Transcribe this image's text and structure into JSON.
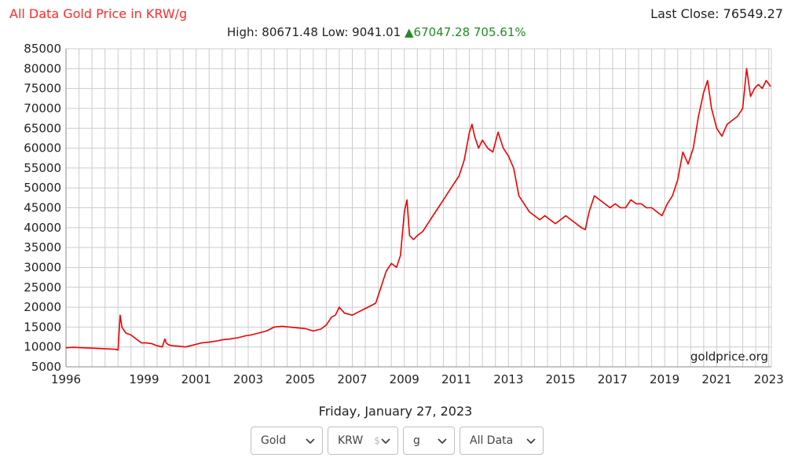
{
  "header": {
    "title": "All Data Gold Price in KRW/g",
    "last_close": "Last Close: 76549.27",
    "high_low": "High: 80671.48 Low: 9041.01",
    "change": "▲67047.28 705.61%"
  },
  "date_label": "Friday, January 27, 2023",
  "controls": {
    "metal": "Gold",
    "currency": "KRW",
    "currency_partial": "$",
    "unit": "g",
    "range": "All Data"
  },
  "colors": {
    "title": "#ff2a2a",
    "line": "#ee0000",
    "up": "#228b22",
    "grid": "#cccccc"
  },
  "chart_data": {
    "type": "line",
    "title": "All Data Gold Price in KRW/g",
    "watermark": "goldprice.org",
    "xlabel": "",
    "ylabel": "",
    "xlim": [
      1996,
      2023.1
    ],
    "ylim": [
      5000,
      85000
    ],
    "y_ticks": [
      5000,
      10000,
      15000,
      20000,
      25000,
      30000,
      35000,
      40000,
      45000,
      50000,
      55000,
      60000,
      65000,
      70000,
      75000,
      80000,
      85000
    ],
    "x_tick_labels": [
      "1996",
      "1999",
      "2001",
      "2003",
      "2005",
      "2007",
      "2009",
      "2011",
      "2013",
      "2015",
      "2017",
      "2019",
      "2021",
      "2023"
    ],
    "x_tick_values": [
      1996,
      1999,
      2001,
      2003,
      2005,
      2007,
      2009,
      2011,
      2013,
      2015,
      2017,
      2019,
      2021,
      2023
    ],
    "grid": true,
    "series": [
      {
        "name": "",
        "x": [
          1996.0,
          1996.3,
          1996.6,
          1997.0,
          1997.3,
          1997.6,
          1997.9,
          1998.0,
          1998.08,
          1998.15,
          1998.3,
          1998.5,
          1998.7,
          1998.9,
          1999.1,
          1999.3,
          1999.5,
          1999.7,
          1999.8,
          1999.85,
          1999.95,
          2000.1,
          2000.3,
          2000.6,
          2000.9,
          2001.2,
          2001.5,
          2001.8,
          2002.0,
          2002.3,
          2002.6,
          2002.9,
          2003.1,
          2003.4,
          2003.7,
          2004.0,
          2004.3,
          2004.6,
          2004.9,
          2005.2,
          2005.5,
          2005.8,
          2006.0,
          2006.2,
          2006.35,
          2006.5,
          2006.7,
          2007.0,
          2007.3,
          2007.6,
          2007.9,
          2008.1,
          2008.3,
          2008.5,
          2008.7,
          2008.85,
          2009.0,
          2009.1,
          2009.2,
          2009.35,
          2009.5,
          2009.7,
          2009.9,
          2010.1,
          2010.3,
          2010.5,
          2010.7,
          2010.9,
          2011.1,
          2011.3,
          2011.5,
          2011.6,
          2011.7,
          2011.85,
          2012.0,
          2012.2,
          2012.4,
          2012.6,
          2012.8,
          2013.0,
          2013.2,
          2013.4,
          2013.6,
          2013.8,
          2014.0,
          2014.2,
          2014.4,
          2014.6,
          2014.8,
          2015.0,
          2015.2,
          2015.4,
          2015.6,
          2015.8,
          2015.95,
          2016.1,
          2016.3,
          2016.5,
          2016.7,
          2016.9,
          2017.1,
          2017.3,
          2017.5,
          2017.7,
          2017.9,
          2018.1,
          2018.3,
          2018.5,
          2018.7,
          2018.9,
          2019.1,
          2019.3,
          2019.5,
          2019.7,
          2019.9,
          2020.1,
          2020.3,
          2020.5,
          2020.65,
          2020.8,
          2021.0,
          2021.2,
          2021.4,
          2021.6,
          2021.8,
          2022.0,
          2022.15,
          2022.3,
          2022.45,
          2022.6,
          2022.75,
          2022.9,
          2023.07
        ],
        "y": [
          9800,
          9900,
          9800,
          9700,
          9600,
          9500,
          9400,
          9200,
          18000,
          15000,
          13500,
          13000,
          12000,
          11000,
          11000,
          10800,
          10300,
          10000,
          12000,
          11000,
          10500,
          10300,
          10200,
          10000,
          10500,
          11000,
          11200,
          11500,
          11800,
          12000,
          12300,
          12800,
          13000,
          13500,
          14000,
          15000,
          15200,
          15000,
          14800,
          14600,
          14000,
          14500,
          15500,
          17500,
          18000,
          20000,
          18500,
          18000,
          19000,
          20000,
          21000,
          25000,
          29000,
          31000,
          30000,
          33000,
          44000,
          47000,
          38000,
          37000,
          38000,
          39000,
          41000,
          43000,
          45000,
          47000,
          49000,
          51000,
          53000,
          57000,
          64000,
          66000,
          63000,
          60000,
          62000,
          60000,
          59000,
          64000,
          60000,
          58000,
          55000,
          48000,
          46000,
          44000,
          43000,
          42000,
          43000,
          42000,
          41000,
          42000,
          43000,
          42000,
          41000,
          40000,
          39500,
          44000,
          48000,
          47000,
          46000,
          45000,
          46000,
          45000,
          45000,
          47000,
          46000,
          46000,
          45000,
          45000,
          44000,
          43000,
          46000,
          48000,
          52000,
          59000,
          56000,
          60000,
          68000,
          74000,
          77000,
          70000,
          65000,
          63000,
          66000,
          67000,
          68000,
          70000,
          80000,
          73000,
          75000,
          76000,
          75000,
          77000,
          75500
        ]
      }
    ]
  }
}
